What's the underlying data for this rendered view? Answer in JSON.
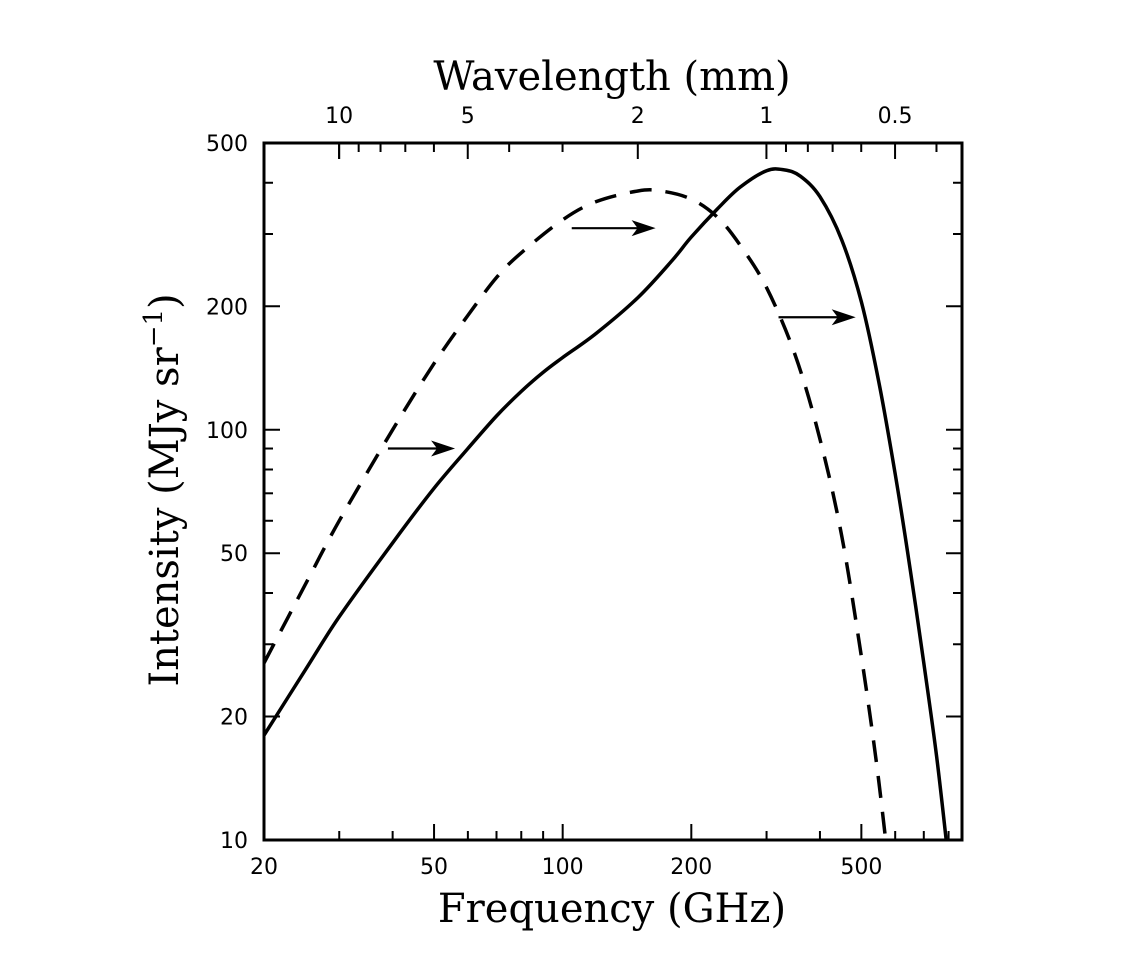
{
  "chart_data": {
    "type": "line",
    "xlabel": "Frequency (GHz)",
    "ylabel": "Intensity (MJy sr",
    "ylabel_exp": "−1",
    "ylabel_close": ")",
    "top_axis_label": "Wavelength (mm)",
    "x_scale": "log",
    "y_scale": "log",
    "xlim": [
      20,
      860
    ],
    "ylim": [
      10,
      500
    ],
    "x_ticks": [
      20,
      50,
      100,
      200,
      500
    ],
    "x_tick_labels": [
      "20",
      "50",
      "100",
      "200",
      "500"
    ],
    "y_ticks": [
      10,
      20,
      50,
      100,
      200,
      500
    ],
    "y_tick_labels": [
      "10",
      "20",
      "50",
      "100",
      "200",
      "500"
    ],
    "top_ticks_mm": [
      10,
      5,
      2,
      1,
      0.5
    ],
    "top_tick_labels": [
      "10",
      "5",
      "2",
      "1",
      "0.5"
    ],
    "grid": false,
    "series": [
      {
        "style": "solid",
        "x": [
          20,
          25,
          30,
          40,
          50,
          60,
          70,
          80,
          90,
          100,
          120,
          150,
          180,
          200,
          230,
          260,
          300,
          330,
          360,
          400,
          450,
          500,
          550,
          600,
          650,
          700,
          750,
          790
        ],
        "y": [
          18,
          26,
          35,
          53,
          72,
          90,
          108,
          124,
          138,
          150,
          172,
          210,
          258,
          295,
          345,
          390,
          428,
          430,
          415,
          370,
          290,
          205,
          130,
          78,
          46,
          27,
          16,
          10
        ]
      },
      {
        "style": "dashed",
        "x": [
          20,
          25,
          30,
          40,
          50,
          60,
          70,
          80,
          100,
          120,
          150,
          170,
          200,
          230,
          260,
          300,
          350,
          400,
          450,
          500,
          540,
          570
        ],
        "y": [
          27,
          42,
          60,
          100,
          145,
          190,
          235,
          270,
          325,
          360,
          382,
          382,
          365,
          330,
          282,
          222,
          152,
          95,
          55,
          28,
          16,
          10
        ]
      }
    ],
    "annotations": [
      {
        "type": "arrow",
        "x_from": 39,
        "x_to": 56,
        "y": 90
      },
      {
        "type": "arrow",
        "x_from": 105,
        "x_to": 165,
        "y": 310
      },
      {
        "type": "arrow",
        "x_from": 320,
        "x_to": 485,
        "y": 188
      }
    ]
  }
}
